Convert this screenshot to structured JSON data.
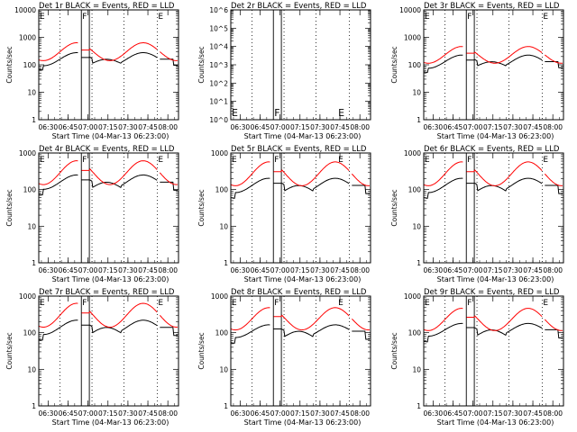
{
  "chart_data": [
    {
      "type": "line",
      "title": "Det 1r BLACK = Events, RED = LLD",
      "xlabel": "Start Time (04-Mar-13 06:23:00)",
      "ylabel": "Counts/sec",
      "yscale": "log",
      "ylim": [
        1,
        10000
      ],
      "ytick_labels": [
        "1",
        "10",
        "100",
        "1000",
        "10000"
      ],
      "xtick_labels": [
        "06:30",
        "06:45",
        "07:00",
        "07:15",
        "07:30",
        "07:45",
        "08:00"
      ],
      "xlim_min": [
        0,
        105
      ],
      "solid_lines_min": [
        32,
        38
      ],
      "dotted_lines_min": [
        16,
        40,
        64,
        89
      ],
      "markers": [
        {
          "label": "E",
          "min": 0
        },
        {
          "label": "F",
          "min": 32
        },
        {
          "label": "E",
          "min": 89
        }
      ],
      "series": [
        {
          "color": "#000000",
          "kind": "events",
          "base": 160,
          "amp": 0.55,
          "phase": -1.0
        },
        {
          "color": "#ff0000",
          "kind": "lld",
          "base": 300,
          "amp": 0.75,
          "phase": -1.0
        }
      ]
    },
    {
      "type": "line",
      "title": "Det 2r BLACK = Events, RED = LLD",
      "xlabel": "Start Time (04-Mar-13 06:23:00)",
      "ylabel": "Counts/sec",
      "yscale": "log",
      "ylim": [
        1,
        1000000
      ],
      "ytick_labels": [
        "10^0",
        "10^1",
        "10^2",
        "10^3",
        "10^4",
        "10^5",
        "10^6"
      ],
      "xtick_labels": [
        "06:30",
        "06:45",
        "07:00",
        "07:15",
        "07:30",
        "07:45",
        "08:00"
      ],
      "xlim_min": [
        0,
        105
      ],
      "solid_lines_min": [
        32,
        38
      ],
      "dotted_lines_min": [
        16,
        40,
        64,
        89
      ],
      "markers": [
        {
          "label": "E",
          "min": 0
        },
        {
          "label": "F",
          "min": 32
        },
        {
          "label": "E",
          "min": 80
        }
      ],
      "series": []
    },
    {
      "type": "line",
      "title": "Det 3r BLACK = Events, RED = LLD",
      "xlabel": "Start Time (04-Mar-13 06:23:00)",
      "ylabel": "Counts/sec",
      "yscale": "log",
      "ylim": [
        1,
        10000
      ],
      "ytick_labels": [
        "1",
        "10",
        "100",
        "1000",
        "10000"
      ],
      "xtick_labels": [
        "06:30",
        "06:45",
        "07:00",
        "07:15",
        "07:30",
        "07:45",
        "08:00"
      ],
      "xlim_min": [
        0,
        105
      ],
      "solid_lines_min": [
        32,
        38
      ],
      "dotted_lines_min": [
        16,
        40,
        64,
        89
      ],
      "markers": [
        {
          "label": "E",
          "min": 0
        },
        {
          "label": "F",
          "min": 32
        },
        {
          "label": "E",
          "min": 89
        }
      ],
      "series": [
        {
          "color": "#000000",
          "kind": "events",
          "base": 130,
          "amp": 0.55,
          "phase": -1.0
        },
        {
          "color": "#ff0000",
          "kind": "lld",
          "base": 230,
          "amp": 0.7,
          "phase": -1.0
        }
      ]
    },
    {
      "type": "line",
      "title": "Det 4r BLACK = Events, RED = LLD",
      "xlabel": "Start Time (04-Mar-13 06:23:00)",
      "ylabel": "Counts/sec",
      "yscale": "log",
      "ylim": [
        1,
        1000
      ],
      "ytick_labels": [
        "1",
        "10",
        "100",
        "1000"
      ],
      "xtick_labels": [
        "06:30",
        "06:45",
        "07:00",
        "07:15",
        "07:30",
        "07:45",
        "08:00"
      ],
      "xlim_min": [
        0,
        105
      ],
      "solid_lines_min": [
        32,
        38
      ],
      "dotted_lines_min": [
        16,
        40,
        64,
        89
      ],
      "markers": [
        {
          "label": "E",
          "min": 0
        },
        {
          "label": "F",
          "min": 32
        },
        {
          "label": "E",
          "min": 89
        }
      ],
      "series": [
        {
          "color": "#000000",
          "kind": "events",
          "base": 160,
          "amp": 0.45,
          "phase": -1.0
        },
        {
          "color": "#ff0000",
          "kind": "lld",
          "base": 290,
          "amp": 0.75,
          "phase": -1.0
        }
      ]
    },
    {
      "type": "line",
      "title": "Det 5r BLACK = Events, RED = LLD",
      "xlabel": "Start Time (04-Mar-13 06:23:00)",
      "ylabel": "Counts/sec",
      "yscale": "log",
      "ylim": [
        1,
        1000
      ],
      "ytick_labels": [
        "1",
        "10",
        "100",
        "1000"
      ],
      "xtick_labels": [
        "06:30",
        "06:45",
        "07:00",
        "07:15",
        "07:30",
        "07:45",
        "08:00"
      ],
      "xlim_min": [
        0,
        105
      ],
      "solid_lines_min": [
        32,
        38
      ],
      "dotted_lines_min": [
        16,
        40,
        64,
        89
      ],
      "markers": [
        {
          "label": "E",
          "min": 0
        },
        {
          "label": "F",
          "min": 32
        },
        {
          "label": "E",
          "min": 80
        }
      ],
      "series": [
        {
          "color": "#000000",
          "kind": "events",
          "base": 130,
          "amp": 0.45,
          "phase": -1.0
        },
        {
          "color": "#ff0000",
          "kind": "lld",
          "base": 270,
          "amp": 0.75,
          "phase": -1.0
        }
      ]
    },
    {
      "type": "line",
      "title": "Det 6r BLACK = Events, RED = LLD",
      "xlabel": "Start Time (04-Mar-13 06:23:00)",
      "ylabel": "Counts/sec",
      "yscale": "log",
      "ylim": [
        1,
        1000
      ],
      "ytick_labels": [
        "1",
        "10",
        "100",
        "1000"
      ],
      "xtick_labels": [
        "06:30",
        "06:45",
        "07:00",
        "07:15",
        "07:30",
        "07:45",
        "08:00"
      ],
      "xlim_min": [
        0,
        105
      ],
      "solid_lines_min": [
        32,
        38
      ],
      "dotted_lines_min": [
        16,
        40,
        64,
        89
      ],
      "markers": [
        {
          "label": "E",
          "min": 0
        },
        {
          "label": "F",
          "min": 32
        },
        {
          "label": "E",
          "min": 89
        }
      ],
      "series": [
        {
          "color": "#000000",
          "kind": "events",
          "base": 130,
          "amp": 0.45,
          "phase": -1.0
        },
        {
          "color": "#ff0000",
          "kind": "lld",
          "base": 270,
          "amp": 0.75,
          "phase": -1.0
        }
      ]
    },
    {
      "type": "line",
      "title": "Det 7r BLACK = Events, RED = LLD",
      "xlabel": "Start Time (04-Mar-13 06:23:00)",
      "ylabel": "Counts/sec",
      "yscale": "log",
      "ylim": [
        1,
        1000
      ],
      "ytick_labels": [
        "1",
        "10",
        "100",
        "1000"
      ],
      "xtick_labels": [
        "06:30",
        "06:45",
        "07:00",
        "07:15",
        "07:30",
        "07:45",
        "08:00"
      ],
      "xlim_min": [
        0,
        105
      ],
      "solid_lines_min": [
        32,
        38
      ],
      "dotted_lines_min": [
        16,
        40,
        64,
        89
      ],
      "markers": [
        {
          "label": "E",
          "min": 0
        },
        {
          "label": "F",
          "min": 32
        },
        {
          "label": "E",
          "min": 89
        }
      ],
      "series": [
        {
          "color": "#000000",
          "kind": "events",
          "base": 140,
          "amp": 0.45,
          "phase": -1.0
        },
        {
          "color": "#ff0000",
          "kind": "lld",
          "base": 300,
          "amp": 0.75,
          "phase": -1.0
        }
      ]
    },
    {
      "type": "line",
      "title": "Det 8r BLACK = Events, RED = LLD",
      "xlabel": "Start Time (04-Mar-13 06:23:00)",
      "ylabel": "Counts/sec",
      "yscale": "log",
      "ylim": [
        1,
        1000
      ],
      "ytick_labels": [
        "1",
        "10",
        "100",
        "1000"
      ],
      "xtick_labels": [
        "06:30",
        "06:45",
        "07:00",
        "07:15",
        "07:30",
        "07:45",
        "08:00"
      ],
      "xlim_min": [
        0,
        105
      ],
      "solid_lines_min": [
        32,
        38
      ],
      "dotted_lines_min": [
        16,
        40,
        64,
        89
      ],
      "markers": [
        {
          "label": "E",
          "min": 0
        },
        {
          "label": "F",
          "min": 32
        },
        {
          "label": "E",
          "min": 80
        }
      ],
      "series": [
        {
          "color": "#000000",
          "kind": "events",
          "base": 110,
          "amp": 0.4,
          "phase": -1.0
        },
        {
          "color": "#ff0000",
          "kind": "lld",
          "base": 240,
          "amp": 0.7,
          "phase": -1.0
        }
      ]
    },
    {
      "type": "line",
      "title": "Det 9r BLACK = Events, RED = LLD",
      "xlabel": "Start Time (04-Mar-13 06:23:00)",
      "ylabel": "Counts/sec",
      "yscale": "log",
      "ylim": [
        1,
        1000
      ],
      "ytick_labels": [
        "1",
        "10",
        "100",
        "1000"
      ],
      "xtick_labels": [
        "06:30",
        "06:45",
        "07:00",
        "07:15",
        "07:30",
        "07:45",
        "08:00"
      ],
      "xlim_min": [
        0,
        105
      ],
      "solid_lines_min": [
        32,
        38
      ],
      "dotted_lines_min": [
        16,
        40,
        64,
        89
      ],
      "markers": [
        {
          "label": "E",
          "min": 0
        },
        {
          "label": "F",
          "min": 32
        },
        {
          "label": "E",
          "min": 89
        }
      ],
      "series": [
        {
          "color": "#000000",
          "kind": "events",
          "base": 120,
          "amp": 0.4,
          "phase": -1.0
        },
        {
          "color": "#ff0000",
          "kind": "lld",
          "base": 230,
          "amp": 0.7,
          "phase": -1.0
        }
      ]
    }
  ]
}
